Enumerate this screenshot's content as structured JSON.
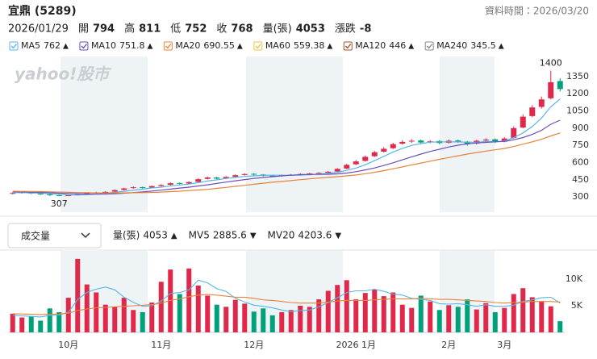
{
  "header": {
    "title": "宜鼎 (5289)",
    "data_time": "資料時間：2026/03/20"
  },
  "quote": {
    "date": "2026/01/29",
    "fields": [
      {
        "label": "開",
        "value": 794,
        "color": "#e0294a"
      },
      {
        "label": "高",
        "value": 811,
        "color": "#e0294a"
      },
      {
        "label": "低",
        "value": 752,
        "color": "#00a17a"
      },
      {
        "label": "收",
        "value": 768,
        "color": "#00a17a"
      },
      {
        "label": "量(張)",
        "value": 4053,
        "color": "#222222"
      },
      {
        "label": "漲跌",
        "value": -8,
        "color": "#00a17a"
      }
    ]
  },
  "watermark": "yahoo!股市",
  "volume_dropdown": "成交量",
  "chart_data": [
    {
      "type": "candlestick",
      "ylim": [
        175,
        1510
      ],
      "yticks": [
        300,
        450,
        600,
        750,
        900,
        1050,
        1200,
        1350
      ],
      "grid": false,
      "up_color": "#e0294a",
      "down_color": "#00a17a",
      "highlight_extremes": true,
      "open": [
        330,
        335,
        342,
        330,
        322,
        316,
        308,
        318,
        326,
        334,
        342,
        347,
        362,
        378,
        386,
        382,
        396,
        407,
        422,
        418,
        432,
        458,
        470,
        462,
        476,
        492,
        502,
        496,
        487,
        482,
        491,
        497,
        502,
        506,
        512,
        522,
        548,
        585,
        615,
        655,
        695,
        725,
        765,
        783,
        792,
        778,
        788,
        772,
        792,
        782,
        765,
        792,
        802,
        782,
        815,
        905,
        1005,
        1085,
        1160,
        1310
      ],
      "high": [
        342,
        346,
        348,
        336,
        328,
        320,
        320,
        330,
        340,
        346,
        351,
        366,
        381,
        392,
        391,
        400,
        412,
        428,
        427,
        436,
        462,
        478,
        476,
        481,
        497,
        507,
        508,
        500,
        492,
        496,
        501,
        506,
        511,
        516,
        527,
        552,
        590,
        622,
        662,
        702,
        735,
        772,
        795,
        805,
        802,
        796,
        795,
        802,
        800,
        788,
        798,
        812,
        810,
        820,
        915,
        1020,
        1100,
        1175,
        1400,
        1335
      ],
      "low": [
        324,
        330,
        325,
        318,
        310,
        307,
        309,
        314,
        321,
        329,
        337,
        342,
        357,
        372,
        374,
        377,
        390,
        401,
        409,
        412,
        427,
        452,
        454,
        457,
        470,
        486,
        489,
        479,
        474,
        476,
        485,
        491,
        496,
        500,
        506,
        517,
        542,
        578,
        608,
        648,
        688,
        718,
        756,
        772,
        765,
        768,
        760,
        765,
        772,
        748,
        758,
        786,
        770,
        776,
        808,
        898,
        995,
        1070,
        1150,
        1220
      ],
      "close": [
        335,
        340,
        330,
        325,
        315,
        310,
        315,
        325,
        335,
        340,
        345,
        360,
        375,
        385,
        380,
        395,
        405,
        420,
        415,
        430,
        455,
        470,
        460,
        475,
        490,
        500,
        495,
        485,
        480,
        490,
        495,
        500,
        505,
        510,
        520,
        545,
        580,
        610,
        650,
        690,
        720,
        760,
        780,
        790,
        775,
        785,
        770,
        790,
        780,
        760,
        790,
        800,
        780,
        810,
        900,
        1000,
        1080,
        1150,
        1300,
        1240
      ],
      "series": [
        {
          "name": "MA5",
          "color": "#5ab4e5",
          "legend_value": 762,
          "arrow": "▲",
          "arrow_color": "#e0294a",
          "values": [
            338,
            338,
            336,
            334,
            329,
            324,
            319,
            317,
            320,
            326,
            333,
            341,
            349,
            359,
            369,
            379,
            386,
            397,
            405,
            413,
            425,
            439,
            450,
            462,
            470,
            479,
            484,
            490,
            490,
            490,
            489,
            490,
            494,
            500,
            506,
            516,
            532,
            552,
            581,
            617,
            654,
            692,
            724,
            750,
            765,
            778,
            780,
            780,
            780,
            777,
            777,
            784,
            782,
            788,
            818,
            858,
            914,
            988,
            1086,
            1154
          ]
        },
        {
          "name": "MA10",
          "color": "#6b4fbb",
          "legend_value": 751.8,
          "arrow": "▲",
          "arrow_color": "#e0294a",
          "values": [
            345,
            344,
            342,
            340,
            337,
            334,
            331,
            328,
            326,
            325,
            326,
            329,
            333,
            338,
            344,
            352,
            360,
            369,
            378,
            386,
            396,
            406,
            418,
            430,
            441,
            452,
            462,
            470,
            477,
            484,
            490,
            495,
            497,
            497,
            498,
            502,
            509,
            521,
            536,
            553,
            575,
            598,
            624,
            650,
            674,
            697,
            716,
            736,
            751,
            763,
            771,
            776,
            781,
            784,
            799,
            818,
            845,
            881,
            934,
            969
          ]
        },
        {
          "name": "MA20",
          "color": "#e8833a",
          "legend_value": 690.55,
          "arrow": "▲",
          "arrow_color": "#e0294a",
          "values": [
            350,
            349,
            348,
            347,
            345,
            343,
            341,
            339,
            337,
            336,
            335,
            335,
            336,
            337,
            338,
            340,
            343,
            347,
            351,
            356,
            361,
            367,
            375,
            384,
            393,
            402,
            411,
            420,
            429,
            436,
            443,
            451,
            458,
            465,
            471,
            477,
            484,
            492,
            503,
            515,
            530,
            546,
            562,
            580,
            596,
            612,
            628,
            644,
            659,
            674,
            687,
            700,
            711,
            723,
            740,
            760,
            781,
            803,
            832,
            858
          ]
        },
        {
          "name": "MA60",
          "color": "#f0c341",
          "legend_value": 559.38,
          "arrow": "▲",
          "arrow_color": "#e0294a"
        },
        {
          "name": "MA120",
          "color": "#a0522d",
          "legend_value": 446,
          "arrow": "▲",
          "arrow_color": "#e0294a"
        },
        {
          "name": "MA240",
          "color": "#888888",
          "legend_value": 345.5,
          "arrow": "▲",
          "arrow_color": "#e0294a"
        }
      ]
    },
    {
      "type": "bar",
      "ylim": [
        0,
        15300
      ],
      "yticks": [
        {
          "value": 5000,
          "label": "5K"
        },
        {
          "value": 10000,
          "label": "10K"
        }
      ],
      "categories": [
        null,
        null,
        null,
        null,
        null,
        null,
        "10月",
        null,
        null,
        null,
        null,
        null,
        null,
        null,
        null,
        null,
        "11月",
        null,
        null,
        null,
        null,
        null,
        null,
        null,
        null,
        null,
        "12月",
        null,
        null,
        null,
        null,
        null,
        null,
        null,
        null,
        null,
        null,
        "2026 1月",
        null,
        null,
        null,
        null,
        null,
        null,
        null,
        null,
        null,
        "2月",
        null,
        null,
        null,
        null,
        null,
        "3月",
        null,
        null,
        null,
        null,
        null,
        null
      ],
      "name": "量(張)",
      "legend_value": 4053,
      "arrow": "▲",
      "arrow_color": "#e0294a",
      "values": [
        3500,
        2800,
        3000,
        2200,
        4500,
        3800,
        6500,
        13800,
        9000,
        7500,
        5200,
        4800,
        6500,
        4200,
        3800,
        5600,
        9500,
        11800,
        7200,
        12000,
        8800,
        6900,
        5200,
        4800,
        6100,
        5400,
        3900,
        4500,
        3200,
        3800,
        4200,
        5000,
        4800,
        6200,
        7800,
        8900,
        9800,
        6200,
        7400,
        8100,
        6800,
        7500,
        5200,
        4600,
        6900,
        5800,
        4200,
        5100,
        4800,
        6200,
        4300,
        5500,
        3800,
        4600,
        7200,
        8300,
        6600,
        5800,
        4900,
        2100
      ],
      "series": [
        {
          "name": "MV5",
          "color": "#5ab4e5",
          "legend_value": 2885.6,
          "arrow": "▼",
          "arrow_color": "#00a17a",
          "values": [
            3200,
            3100,
            3000,
            2900,
            3200,
            3260,
            3800,
            6160,
            7520,
            8120,
            8520,
            7980,
            6600,
            5640,
            4900,
            5000,
            5900,
            7300,
            7500,
            8000,
            9800,
            9300,
            8200,
            7700,
            6400,
            5700,
            5100,
            4900,
            4600,
            4200,
            3900,
            4100,
            4200,
            4800,
            5600,
            6500,
            7500,
            7800,
            7800,
            8100,
            7700,
            7200,
            7000,
            6400,
            6200,
            6000,
            5400,
            5300,
            5400,
            5200,
            4900,
            5200,
            4900,
            4900,
            5100,
            5800,
            6100,
            6500,
            6600,
            5500
          ]
        },
        {
          "name": "MV20",
          "color": "#e8833a",
          "legend_value": 4203.6,
          "arrow": "▼",
          "arrow_color": "#00a17a",
          "values": [
            3500,
            3450,
            3400,
            3350,
            3400,
            3450,
            3600,
            4100,
            4400,
            4600,
            4700,
            4800,
            4900,
            5000,
            5100,
            5200,
            5500,
            6000,
            6300,
            6700,
            7000,
            7100,
            7000,
            6800,
            6600,
            6600,
            6400,
            6100,
            6000,
            5800,
            5600,
            5500,
            5500,
            5500,
            5700,
            5900,
            6000,
            6000,
            6000,
            6100,
            6200,
            6300,
            6300,
            6300,
            6400,
            6300,
            6200,
            6200,
            6100,
            6000,
            5900,
            5800,
            5600,
            5500,
            5600,
            5700,
            5800,
            5800,
            5800,
            5700
          ]
        }
      ]
    }
  ]
}
